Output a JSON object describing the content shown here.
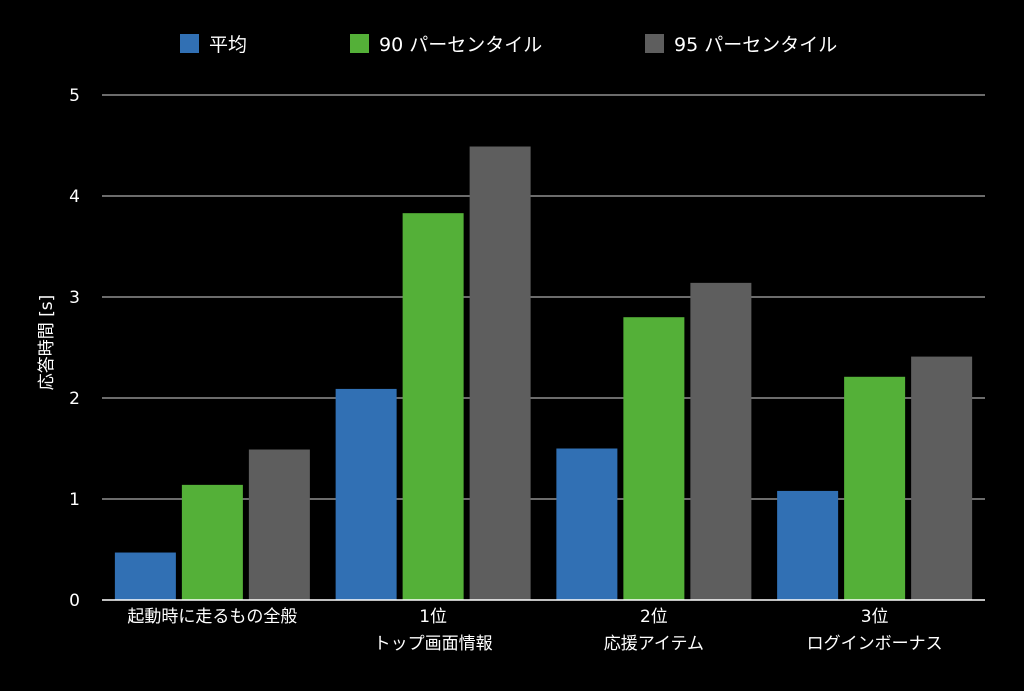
{
  "chart_data": {
    "type": "bar",
    "title": "",
    "xlabel": "",
    "ylabel": "応答時間 [s]",
    "ylim": [
      0,
      5
    ],
    "yticks": [
      "0",
      "1",
      "2",
      "3",
      "4",
      "5"
    ],
    "grid": true,
    "legend_position": "top",
    "categories": [
      [
        "起動時に走るもの全般"
      ],
      [
        "1位",
        "トップ画面情報"
      ],
      [
        "2位",
        "応援アイテム"
      ],
      [
        "3位",
        "ログインボーナス"
      ]
    ],
    "series": [
      {
        "name": "平均",
        "color": "#3170b4",
        "values": [
          0.47,
          2.09,
          1.5,
          1.08
        ]
      },
      {
        "name": "90 パーセンタイル",
        "color": "#54b038",
        "values": [
          1.14,
          3.83,
          2.8,
          2.21
        ]
      },
      {
        "name": "95 パーセンタイル",
        "color": "#5e5e5e",
        "values": [
          1.49,
          4.49,
          3.14,
          2.41
        ]
      }
    ]
  }
}
